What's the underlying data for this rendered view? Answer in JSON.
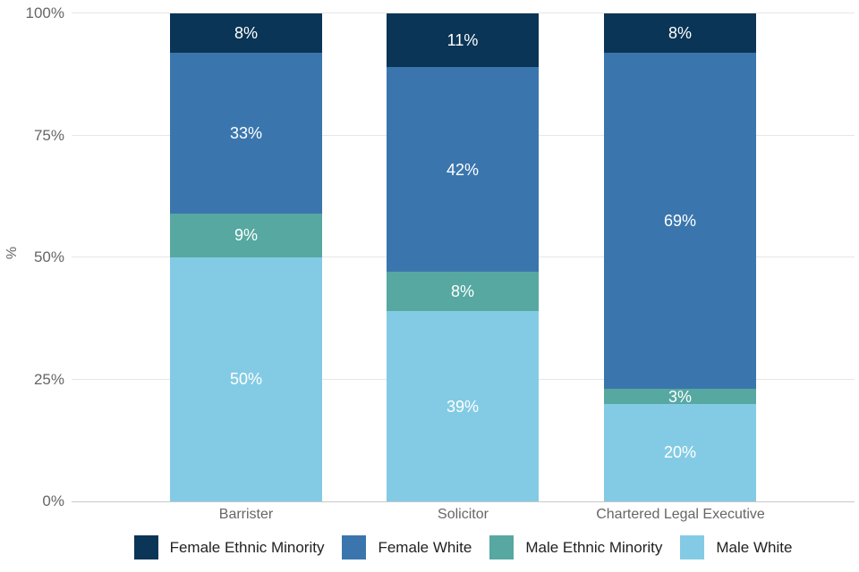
{
  "chart_data": {
    "type": "bar",
    "stacked": true,
    "orientation": "vertical",
    "title": "",
    "xlabel": "",
    "ylabel": "%",
    "ylim": [
      0,
      100
    ],
    "yticks": [
      0,
      25,
      50,
      75,
      100
    ],
    "ytick_labels": [
      "0%",
      "25%",
      "50%",
      "75%",
      "100%"
    ],
    "grid": true,
    "legend_position": "bottom",
    "data_labels": "percent-inside-segment",
    "categories": [
      "Barrister",
      "Solicitor",
      "Chartered Legal Executive"
    ],
    "series": [
      {
        "name": "Female Ethnic Minority",
        "color": "#0b3556",
        "values": [
          8,
          11,
          8
        ]
      },
      {
        "name": "Female White",
        "color": "#3a76ad",
        "values": [
          33,
          42,
          69
        ]
      },
      {
        "name": "Male Ethnic Minority",
        "color": "#56a8a1",
        "values": [
          9,
          8,
          3
        ]
      },
      {
        "name": "Male White",
        "color": "#83cbe4",
        "values": [
          50,
          39,
          20
        ]
      }
    ]
  },
  "styles": {
    "grid_color": "#e6e6e6",
    "axis_line_color": "#c9c9c9",
    "tick_label_color": "#666666",
    "category_label_color": "#666666",
    "legend_text_color": "#222222",
    "value_label_color": "#ffffff",
    "background_color": "#ffffff"
  }
}
